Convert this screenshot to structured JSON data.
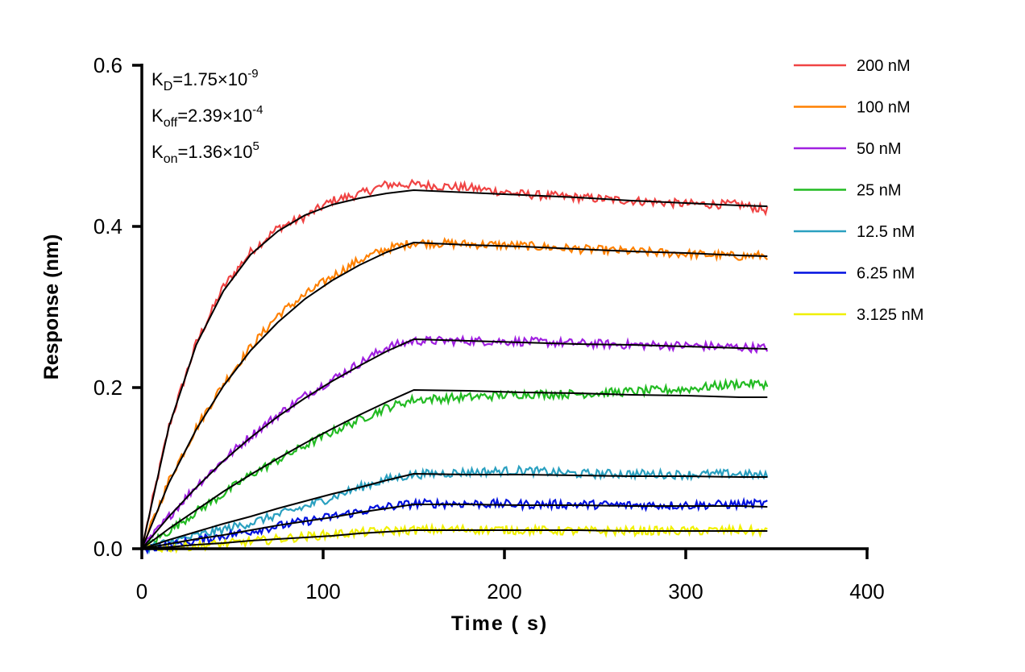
{
  "chart_data": {
    "type": "line",
    "xlabel": "Time ( s)",
    "ylabel": "Response (nm)",
    "xlim": [
      0,
      400
    ],
    "ylim": [
      0,
      0.6
    ],
    "xticks": [
      "0",
      "100",
      "200",
      "300",
      "400"
    ],
    "yticks": [
      "0.0",
      "0.2",
      "0.4",
      "0.6"
    ],
    "grid": false,
    "legend_position": "top-right",
    "annotations": {
      "kd": {
        "base": "K",
        "sub": "D",
        "value": "=1.75×10",
        "exp": "-9"
      },
      "koff": {
        "base": "K",
        "sub": "off",
        "value": "=2.39×10",
        "exp": "-4"
      },
      "kon": {
        "base": "K",
        "sub": "on",
        "value": "=1.36×10",
        "exp": "5"
      }
    },
    "fit_color": "#000000",
    "x": [
      0,
      15,
      30,
      45,
      60,
      75,
      90,
      105,
      120,
      135,
      150,
      180,
      210,
      240,
      270,
      300,
      330,
      345
    ],
    "series": [
      {
        "name": "200 nM",
        "color": "#f04444",
        "fit": [
          0,
          0.152,
          0.253,
          0.32,
          0.365,
          0.394,
          0.414,
          0.427,
          0.435,
          0.441,
          0.445,
          0.442,
          0.439,
          0.436,
          0.432,
          0.429,
          0.426,
          0.425
        ],
        "response": [
          0,
          0.152,
          0.255,
          0.325,
          0.368,
          0.398,
          0.412,
          0.432,
          0.44,
          0.452,
          0.452,
          0.448,
          0.44,
          0.436,
          0.432,
          0.428,
          0.427,
          0.42
        ]
      },
      {
        "name": "100 nM",
        "color": "#ff8000",
        "fit": [
          0,
          0.082,
          0.148,
          0.202,
          0.246,
          0.281,
          0.31,
          0.333,
          0.352,
          0.368,
          0.38,
          0.377,
          0.375,
          0.372,
          0.369,
          0.367,
          0.364,
          0.363
        ],
        "response": [
          0,
          0.085,
          0.15,
          0.205,
          0.25,
          0.29,
          0.315,
          0.338,
          0.358,
          0.372,
          0.38,
          0.378,
          0.376,
          0.372,
          0.369,
          0.366,
          0.363,
          0.364
        ]
      },
      {
        "name": "50 nM",
        "color": "#a020e0",
        "fit": [
          0,
          0.04,
          0.076,
          0.109,
          0.138,
          0.164,
          0.187,
          0.208,
          0.227,
          0.245,
          0.26,
          0.258,
          0.256,
          0.254,
          0.253,
          0.251,
          0.249,
          0.248
        ],
        "response": [
          0,
          0.04,
          0.078,
          0.11,
          0.14,
          0.166,
          0.19,
          0.21,
          0.23,
          0.25,
          0.258,
          0.258,
          0.257,
          0.255,
          0.253,
          0.252,
          0.25,
          0.249
        ]
      },
      {
        "name": "25 nM",
        "color": "#22bb22",
        "fit": [
          0,
          0.025,
          0.048,
          0.071,
          0.092,
          0.112,
          0.131,
          0.149,
          0.166,
          0.182,
          0.197,
          0.196,
          0.194,
          0.193,
          0.191,
          0.19,
          0.188,
          0.188
        ],
        "response": [
          0,
          0.022,
          0.046,
          0.068,
          0.092,
          0.11,
          0.128,
          0.145,
          0.16,
          0.175,
          0.185,
          0.188,
          0.192,
          0.192,
          0.195,
          0.198,
          0.205,
          0.204
        ]
      },
      {
        "name": "12.5 nM",
        "color": "#2aa0c0",
        "fit": [
          0,
          0.011,
          0.021,
          0.031,
          0.04,
          0.05,
          0.059,
          0.068,
          0.076,
          0.085,
          0.093,
          0.092,
          0.092,
          0.091,
          0.09,
          0.09,
          0.089,
          0.089
        ],
        "response": [
          0,
          0.008,
          0.016,
          0.024,
          0.032,
          0.042,
          0.052,
          0.064,
          0.076,
          0.086,
          0.092,
          0.095,
          0.097,
          0.093,
          0.093,
          0.092,
          0.093,
          0.09
        ]
      },
      {
        "name": "6.25 nM",
        "color": "#0010e0",
        "fit": [
          0,
          0.006,
          0.012,
          0.017,
          0.023,
          0.029,
          0.034,
          0.039,
          0.045,
          0.05,
          0.055,
          0.055,
          0.054,
          0.054,
          0.053,
          0.053,
          0.053,
          0.052
        ],
        "response": [
          0,
          0.004,
          0.01,
          0.016,
          0.022,
          0.028,
          0.034,
          0.04,
          0.046,
          0.052,
          0.056,
          0.056,
          0.055,
          0.055,
          0.054,
          0.054,
          0.055,
          0.056
        ]
      },
      {
        "name": "3.125 nM",
        "color": "#f0f000",
        "fit": [
          0,
          0.002,
          0.005,
          0.007,
          0.01,
          0.012,
          0.014,
          0.016,
          0.019,
          0.021,
          0.023,
          0.023,
          0.023,
          0.023,
          0.022,
          0.022,
          0.022,
          0.022
        ],
        "response": [
          0,
          0.001,
          0.004,
          0.006,
          0.009,
          0.012,
          0.015,
          0.018,
          0.02,
          0.022,
          0.023,
          0.024,
          0.023,
          0.022,
          0.022,
          0.022,
          0.023,
          0.021
        ]
      }
    ]
  }
}
